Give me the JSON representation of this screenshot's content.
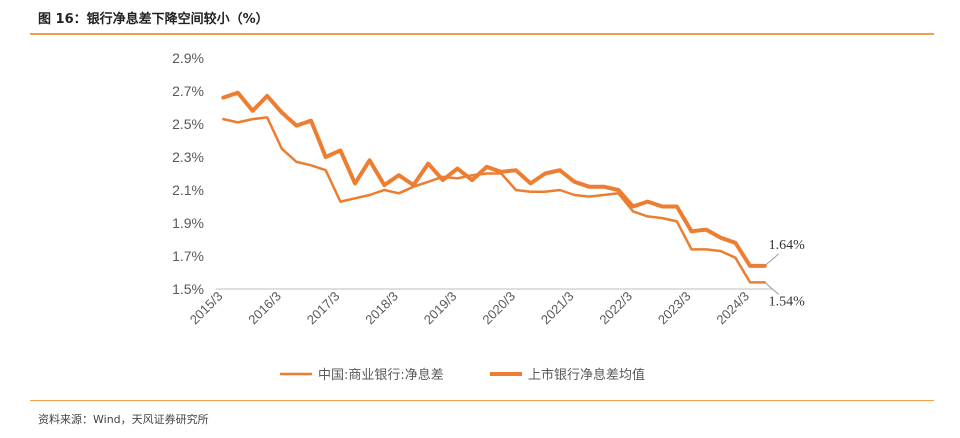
{
  "figure": {
    "title": "图 16：银行净息差下降空间较小（%）",
    "source": "资料来源：Wind，天风证券研究所"
  },
  "colors": {
    "line": "#ed7d31",
    "rule": "#f0a04a",
    "axis": "#bfbfbf",
    "text": "#595959"
  },
  "chart_data": {
    "type": "line",
    "title": "",
    "xlabel": "",
    "ylabel": "",
    "ylim": [
      1.5,
      2.9
    ],
    "yticks": [
      "1.5%",
      "1.7%",
      "1.9%",
      "2.1%",
      "2.3%",
      "2.5%",
      "2.7%",
      "2.9%"
    ],
    "xticks": [
      "2015/3",
      "2016/3",
      "2017/3",
      "2018/3",
      "2019/3",
      "2020/3",
      "2021/3",
      "2022/3",
      "2023/3",
      "2024/3"
    ],
    "grid": false,
    "legend_position": "bottom",
    "x": [
      "2015/3",
      "2015/6",
      "2015/9",
      "2015/12",
      "2016/3",
      "2016/6",
      "2016/9",
      "2016/12",
      "2017/3",
      "2017/6",
      "2017/9",
      "2017/12",
      "2018/3",
      "2018/6",
      "2018/9",
      "2018/12",
      "2019/3",
      "2019/6",
      "2019/9",
      "2019/12",
      "2020/3",
      "2020/6",
      "2020/9",
      "2020/12",
      "2021/3",
      "2021/6",
      "2021/9",
      "2021/12",
      "2022/3",
      "2022/6",
      "2022/9",
      "2022/12",
      "2023/3",
      "2023/6",
      "2023/9",
      "2023/12",
      "2024/3",
      "2024/6"
    ],
    "series": [
      {
        "name": "中国:商业银行:净息差",
        "width": 2.5,
        "values": [
          2.53,
          2.51,
          2.53,
          2.54,
          2.35,
          2.27,
          2.25,
          2.22,
          2.03,
          2.05,
          2.07,
          2.1,
          2.08,
          2.12,
          2.15,
          2.18,
          2.17,
          2.19,
          2.2,
          2.2,
          2.1,
          2.09,
          2.09,
          2.1,
          2.07,
          2.06,
          2.07,
          2.08,
          1.97,
          1.94,
          1.93,
          1.91,
          1.74,
          1.74,
          1.73,
          1.69,
          1.54,
          1.54
        ]
      },
      {
        "name": "上市银行净息差均值",
        "width": 4,
        "values": [
          2.66,
          2.69,
          2.58,
          2.67,
          2.57,
          2.49,
          2.52,
          2.3,
          2.34,
          2.14,
          2.28,
          2.13,
          2.19,
          2.13,
          2.26,
          2.16,
          2.23,
          2.16,
          2.24,
          2.21,
          2.22,
          2.14,
          2.2,
          2.22,
          2.15,
          2.12,
          2.12,
          2.1,
          2.0,
          2.03,
          2.0,
          2.0,
          1.85,
          1.86,
          1.81,
          1.78,
          1.64,
          1.64
        ]
      }
    ],
    "annotations": [
      "1.64%",
      "1.54%"
    ]
  }
}
